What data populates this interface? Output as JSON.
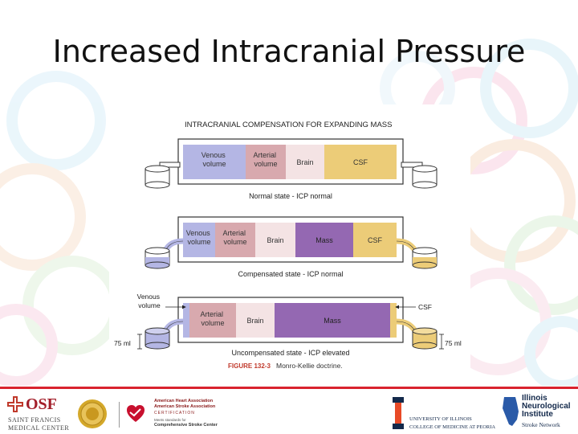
{
  "slide": {
    "title": "Increased Intracranial Pressure"
  },
  "figure": {
    "heading": "INTRACRANIAL COMPENSATION FOR EXPANDING MASS",
    "caption_label": "FIGURE 132-3",
    "caption_text": "Monro-Kellie doctrine.",
    "colors": {
      "venous": "#b4b6e4",
      "arterial": "#d8a9ae",
      "brain": "#f4e3e4",
      "mass": "#9468b2",
      "csf": "#eccc78"
    },
    "states": [
      {
        "caption": "Normal state - ICP normal",
        "compartments": [
          "Venous volume",
          "Arterial volume",
          "Brain",
          "CSF"
        ]
      },
      {
        "caption": "Compensated state - ICP normal",
        "compartments": [
          "Venous volume",
          "Arterial volume",
          "Brain",
          "Mass",
          "CSF"
        ]
      },
      {
        "caption": "Uncompensated state - ICP elevated",
        "compartments": [
          "Arterial volume",
          "Brain",
          "Mass"
        ],
        "side_labels": {
          "venous": "Venous volume",
          "csf": "CSF",
          "left_volume": "75 ml",
          "right_volume": "75 ml"
        }
      }
    ]
  },
  "footer": {
    "osf_logo": "OSF",
    "osf_name_1": "SAINT FRANCIS",
    "osf_name_2": "MEDICAL CENTER",
    "aha_line_1": "American Heart Association",
    "aha_line_2": "American Stroke Association",
    "aha_line_3": "CERTIFICATION",
    "aha_line_4": "Meets standards for",
    "aha_line_5": "Comprehensive Stroke Center",
    "ui_line_1": "UNIVERSITY OF ILLINOIS",
    "ui_line_2": "COLLEGE OF MEDICINE AT PEORIA",
    "ini_line_1": "Illinois",
    "ini_line_2": "Neurological",
    "ini_line_3": "Institute",
    "ini_line_4": "Stroke Network"
  }
}
